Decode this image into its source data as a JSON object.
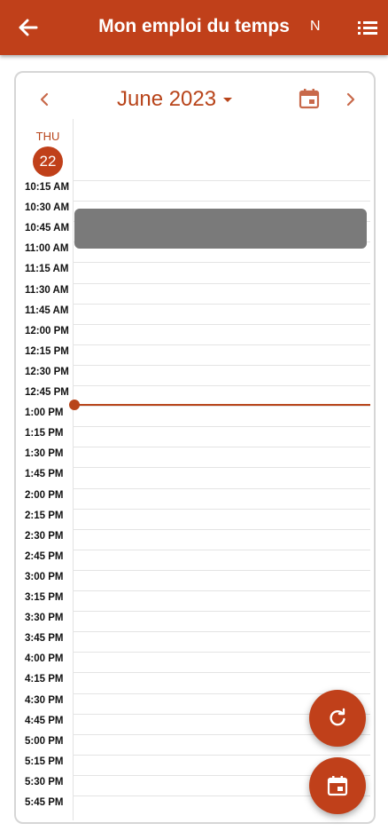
{
  "appbar": {
    "title": "Mon emploi du temps",
    "initial": "N"
  },
  "calendar": {
    "month_label": "June 2023",
    "day_of_week": "THU",
    "day_number": "22"
  },
  "time_slots": [
    "10:15 AM",
    "10:30 AM",
    "10:45 AM",
    "11:00 AM",
    "11:15 AM",
    "11:30 AM",
    "11:45 AM",
    "12:00 PM",
    "12:15 PM",
    "12:30 PM",
    "12:45 PM",
    "1:00 PM",
    "1:15 PM",
    "1:30 PM",
    "1:45 PM",
    "2:00 PM",
    "2:15 PM",
    "2:30 PM",
    "2:45 PM",
    "3:00 PM",
    "3:15 PM",
    "3:30 PM",
    "3:45 PM",
    "4:00 PM",
    "4:15 PM",
    "4:30 PM",
    "4:45 PM",
    "5:00 PM",
    "5:15 PM",
    "5:30 PM",
    "5:45 PM"
  ],
  "colors": {
    "accent": "#c0401a",
    "event": "#7a7a7a"
  },
  "icons": {
    "back": "arrow-left-icon",
    "menu": "list-icon",
    "prev": "chevron-left-icon",
    "next": "chevron-right-icon",
    "calendar": "calendar-icon",
    "refresh": "refresh-icon",
    "today": "calendar-today-icon"
  }
}
